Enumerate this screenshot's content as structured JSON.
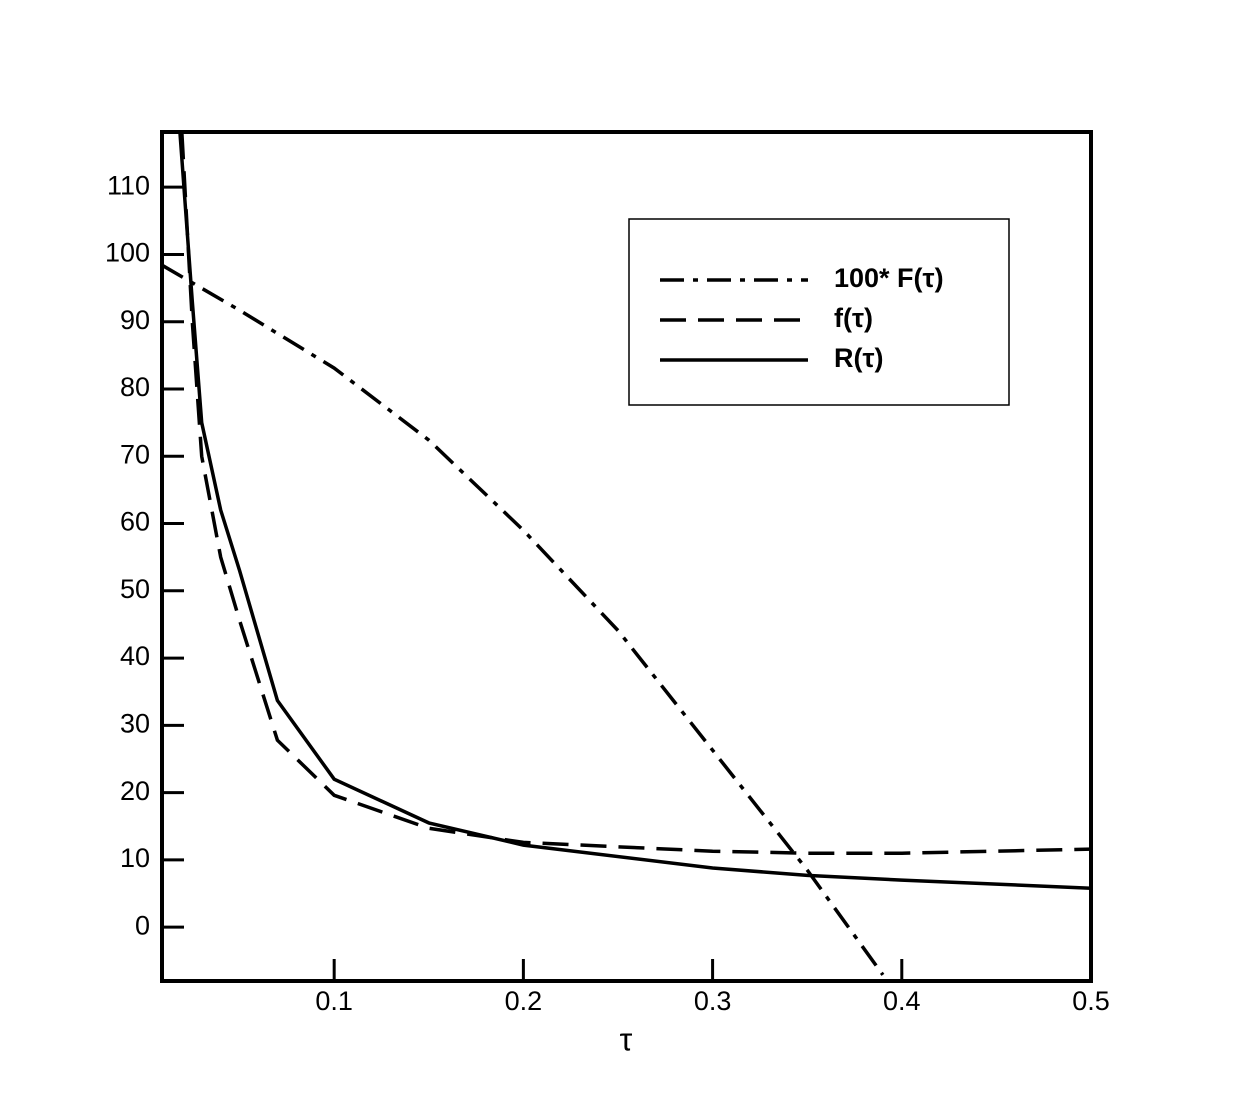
{
  "chart_data": {
    "type": "line",
    "x_label": "τ",
    "xlim": [
      0.009,
      0.5
    ],
    "ylim": [
      -8,
      118.2
    ],
    "xticks": [
      0.1,
      0.2,
      0.3,
      0.4,
      0.5
    ],
    "yticks": [
      0,
      10,
      20,
      30,
      40,
      50,
      60,
      70,
      80,
      90,
      100,
      110
    ],
    "series": [
      {
        "name": "100* F(τ)",
        "color": "#000",
        "style": "dashdot",
        "x": [
          0.009,
          0.05,
          0.1,
          0.15,
          0.2,
          0.25,
          0.3,
          0.35,
          0.39
        ],
        "values": [
          98.4,
          91.7,
          83.1,
          72.4,
          59,
          44.1,
          26.3,
          8.5,
          -7.1
        ]
      },
      {
        "name": "f(τ)",
        "color": "#000",
        "style": "dashed",
        "x": [
          0.0195,
          0.025,
          0.03,
          0.04,
          0.05,
          0.07,
          0.1,
          0.15,
          0.2,
          0.3,
          0.35,
          0.4,
          0.5
        ],
        "values": [
          118,
          90,
          70,
          55,
          45.6,
          27.8,
          19.6,
          14.7,
          12.6,
          11.3,
          11,
          11,
          11.6
        ]
      },
      {
        "name": "R(τ)",
        "color": "#000",
        "style": "solid",
        "x": [
          0.0185,
          0.025,
          0.03,
          0.04,
          0.05,
          0.07,
          0.1,
          0.15,
          0.2,
          0.3,
          0.35,
          0.4,
          0.5
        ],
        "values": [
          118,
          93,
          75,
          62,
          53,
          33.7,
          22,
          15.5,
          12.2,
          8.8,
          7.7,
          7,
          5.8
        ]
      }
    ]
  }
}
